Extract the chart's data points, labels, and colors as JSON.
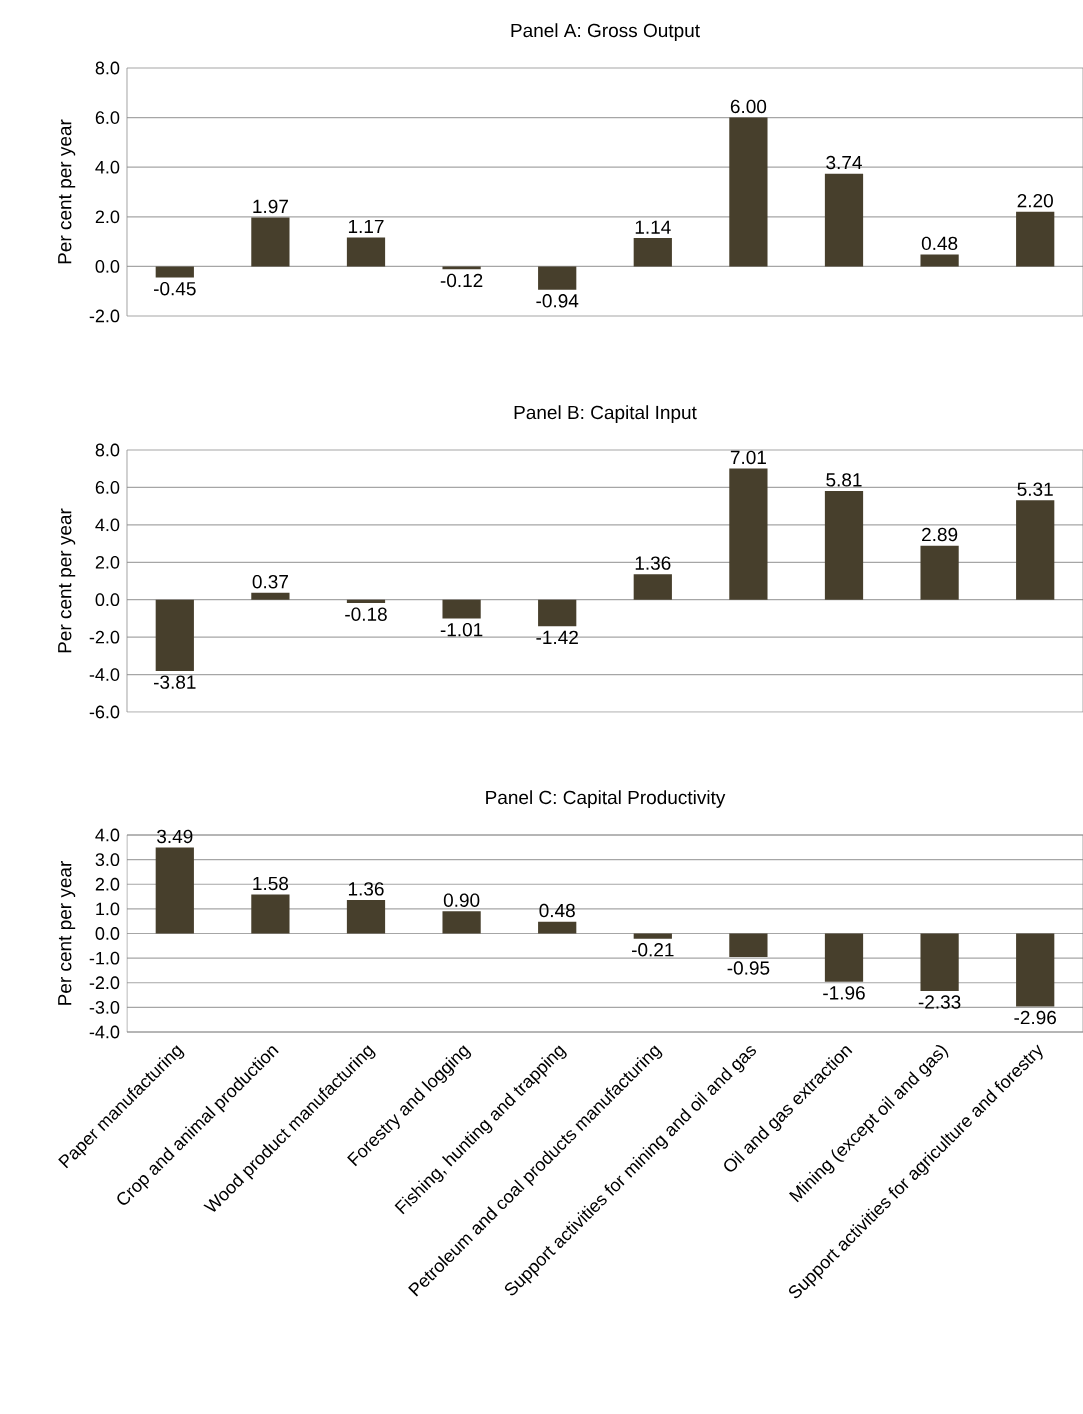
{
  "chart_data": [
    {
      "type": "bar",
      "title": "Panel A: Gross Output",
      "ylabel": "Per cent per year",
      "color": "#473f2c",
      "grid": "y",
      "tick_labels": "y",
      "categories": [
        null,
        null,
        null,
        null,
        null,
        null,
        null,
        null,
        null,
        null
      ],
      "values": [
        -0.45,
        1.97,
        1.17,
        -0.12,
        -0.94,
        1.14,
        6.0,
        3.74,
        0.48,
        2.2
      ],
      "value_labels": [
        "-0.45",
        "1.97",
        "1.17",
        "-0.12",
        "-0.94",
        "1.14",
        "6.00",
        "3.74",
        "0.48",
        "2.20"
      ],
      "ylim": [
        -2,
        8
      ],
      "yticks": [
        {
          "value": -2,
          "label": "-2.0"
        },
        {
          "value": 0,
          "label": "0.0"
        },
        {
          "value": 2,
          "label": "2.0"
        },
        {
          "value": 4,
          "label": "4.0"
        },
        {
          "value": 6,
          "label": "6.0"
        },
        {
          "value": 8,
          "label": "8.0"
        }
      ]
    },
    {
      "type": "bar",
      "title": "Panel B: Capital Input",
      "ylabel": "Per cent per year",
      "color": "#473f2c",
      "grid": "y",
      "tick_labels": "y",
      "categories": [
        null,
        null,
        null,
        null,
        null,
        null,
        null,
        null,
        null,
        null
      ],
      "values": [
        -3.81,
        0.37,
        -0.18,
        -1.01,
        -1.42,
        1.36,
        7.01,
        5.81,
        2.89,
        5.31
      ],
      "value_labels": [
        "-3.81",
        "0.37",
        "-0.18",
        "-1.01",
        "-1.42",
        "1.36",
        "7.01",
        "5.81",
        "2.89",
        "5.31"
      ],
      "ylim": [
        -6,
        8
      ],
      "yticks": [
        {
          "value": -6,
          "label": "-6.0"
        },
        {
          "value": -4,
          "label": "-4.0"
        },
        {
          "value": -2,
          "label": "-2.0"
        },
        {
          "value": 0,
          "label": "0.0"
        },
        {
          "value": 2,
          "label": "2.0"
        },
        {
          "value": 4,
          "label": "4.0"
        },
        {
          "value": 6,
          "label": "6.0"
        },
        {
          "value": 8,
          "label": "8.0"
        }
      ]
    },
    {
      "type": "bar",
      "title": "Panel C: Capital Productivity",
      "ylabel": "Per cent per year",
      "color": "#473f2c",
      "grid": "y",
      "categories": [
        "Paper manufacturing",
        "Crop and animal production",
        "Wood product manufacturing",
        "Forestry and logging",
        "Fishing, hunting and trapping",
        "Petroleum and coal products manufacturing",
        "Support activities for mining and oil and gas",
        "Oil and gas extraction",
        "Mining (except oil and gas)",
        "Support activities for agriculture and forestry"
      ],
      "values": [
        3.49,
        1.58,
        1.36,
        0.9,
        0.48,
        -0.21,
        -0.95,
        -1.96,
        -2.33,
        -2.96
      ],
      "value_labels": [
        "3.49",
        "1.58",
        "1.36",
        "0.90",
        "0.48",
        "-0.21",
        "-0.95",
        "-1.96",
        "-2.33",
        "-2.96"
      ],
      "ylim": [
        -4,
        4
      ],
      "yticks": [
        {
          "value": -4,
          "label": "-4.0"
        },
        {
          "value": -3,
          "label": "-3.0"
        },
        {
          "value": -2,
          "label": "-2.0"
        },
        {
          "value": -1,
          "label": "-1.0"
        },
        {
          "value": 0,
          "label": "0.0"
        },
        {
          "value": 1,
          "label": "1.0"
        },
        {
          "value": 2,
          "label": "2.0"
        },
        {
          "value": 3,
          "label": "3.0"
        },
        {
          "value": 4,
          "label": "4.0"
        }
      ]
    }
  ]
}
